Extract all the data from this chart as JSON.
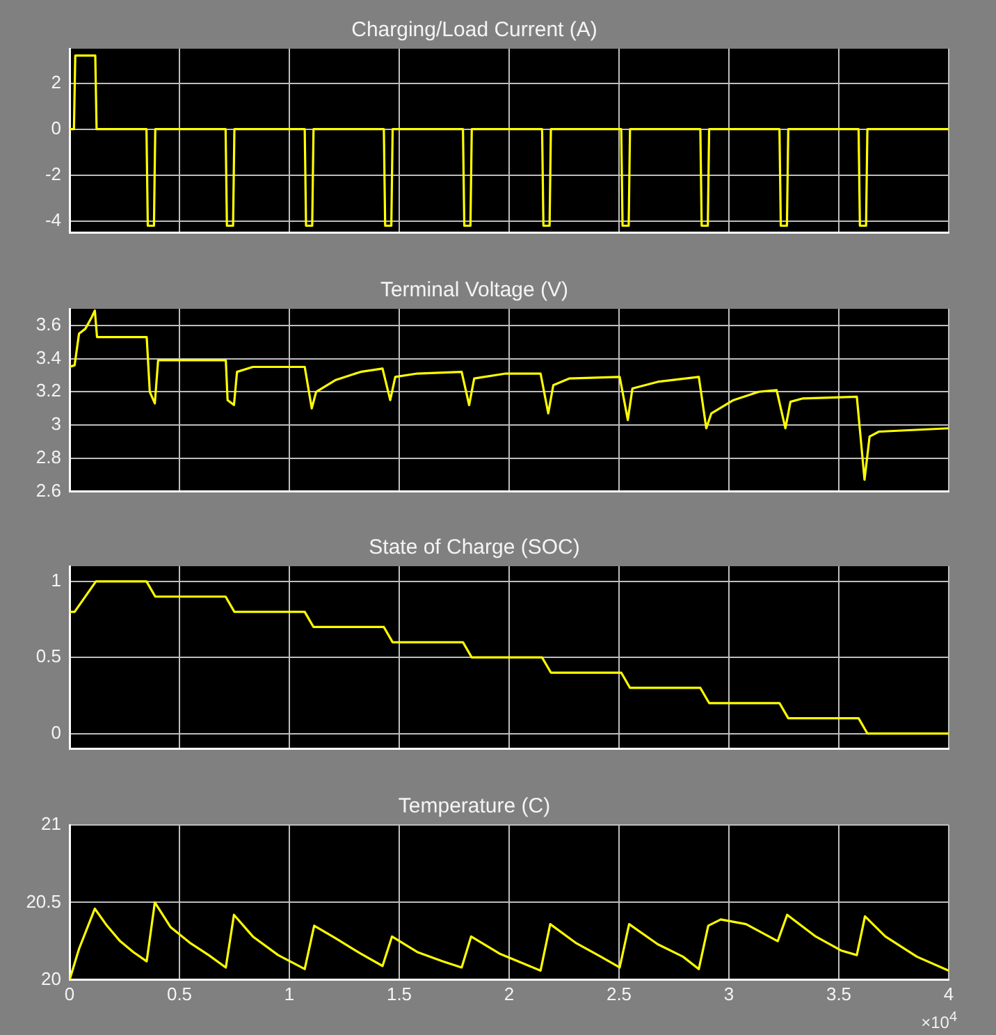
{
  "chart_data": [
    {
      "type": "line",
      "title": "Charging/Load Current (A)",
      "xlim": [
        0,
        4
      ],
      "xticks": [
        0,
        0.5,
        1,
        1.5,
        2,
        2.5,
        3,
        3.5,
        4
      ],
      "ylim": [
        -4.5,
        3.5
      ],
      "yticks": [
        -4,
        -2,
        0,
        2
      ],
      "grid": true,
      "tick_labels": "y",
      "series": [
        {
          "color": "#ffff00",
          "x": [
            0,
            0.02,
            0.026,
            0.117,
            0.123,
            0.35,
            0.356,
            0.384,
            0.39,
            0.71,
            0.716,
            0.744,
            0.75,
            1.07,
            1.076,
            1.104,
            1.11,
            1.43,
            1.436,
            1.464,
            1.47,
            1.79,
            1.796,
            1.824,
            1.83,
            2.15,
            2.156,
            2.184,
            2.19,
            2.51,
            2.516,
            2.544,
            2.55,
            2.87,
            2.876,
            2.904,
            2.91,
            3.23,
            3.236,
            3.264,
            3.27,
            3.59,
            3.596,
            3.624,
            3.63,
            4
          ],
          "values": [
            0,
            0,
            3.2,
            3.2,
            0,
            0,
            -4.2,
            -4.2,
            0,
            0,
            -4.2,
            -4.2,
            0,
            0,
            -4.2,
            -4.2,
            0,
            0,
            -4.2,
            -4.2,
            0,
            0,
            -4.2,
            -4.2,
            0,
            0,
            -4.2,
            -4.2,
            0,
            0,
            -4.2,
            -4.2,
            0,
            0,
            -4.2,
            -4.2,
            0,
            0,
            -4.2,
            -4.2,
            0,
            0,
            -4.2,
            -4.2,
            0,
            0
          ]
        }
      ]
    },
    {
      "type": "line",
      "title": "Terminal Voltage (V)",
      "xlim": [
        0,
        4
      ],
      "xticks": [
        0,
        0.5,
        1,
        1.5,
        2,
        2.5,
        3,
        3.5,
        4
      ],
      "ylim": [
        2.6,
        3.7
      ],
      "yticks": [
        2.6,
        2.8,
        3,
        3.2,
        3.4,
        3.6
      ],
      "grid": true,
      "tick_labels": "y",
      "series": [
        {
          "color": "#ffff00",
          "x": [
            0,
            0.023,
            0.043,
            0.072,
            0.101,
            0.115,
            0.125,
            0.351,
            0.365,
            0.388,
            0.403,
            0.711,
            0.719,
            0.748,
            0.762,
            0.834,
            1.07,
            1.102,
            1.122,
            1.209,
            1.324,
            1.424,
            1.459,
            1.482,
            1.582,
            1.784,
            1.818,
            1.841,
            1.985,
            2.143,
            2.178,
            2.201,
            2.273,
            2.503,
            2.54,
            2.561,
            2.676,
            2.863,
            2.897,
            2.92,
            3.021,
            3.136,
            3.217,
            3.257,
            3.28,
            3.337,
            3.582,
            3.617,
            3.64,
            3.683,
            4
          ],
          "values": [
            3.35,
            3.36,
            3.55,
            3.58,
            3.65,
            3.69,
            3.53,
            3.53,
            3.2,
            3.13,
            3.39,
            3.39,
            3.15,
            3.12,
            3.32,
            3.35,
            3.35,
            3.1,
            3.2,
            3.27,
            3.32,
            3.34,
            3.15,
            3.29,
            3.31,
            3.32,
            3.12,
            3.28,
            3.31,
            3.31,
            3.07,
            3.24,
            3.28,
            3.29,
            3.03,
            3.22,
            3.26,
            3.29,
            2.98,
            3.07,
            3.15,
            3.2,
            3.21,
            2.98,
            3.14,
            3.16,
            3.17,
            2.67,
            2.93,
            2.96,
            2.98
          ]
        }
      ]
    },
    {
      "type": "line",
      "title": "State of Charge (SOC)",
      "xlim": [
        0,
        4
      ],
      "xticks": [
        0,
        0.5,
        1,
        1.5,
        2,
        2.5,
        3,
        3.5,
        4
      ],
      "ylim": [
        -0.1,
        1.1
      ],
      "yticks": [
        0,
        0.5,
        1
      ],
      "grid": true,
      "tick_labels": "y",
      "series": [
        {
          "color": "#ffff00",
          "x": [
            0,
            0.023,
            0.12,
            0.35,
            0.39,
            0.71,
            0.75,
            1.07,
            1.11,
            1.43,
            1.47,
            1.79,
            1.83,
            2.15,
            2.19,
            2.51,
            2.55,
            2.87,
            2.91,
            3.23,
            3.27,
            3.59,
            3.63,
            4
          ],
          "values": [
            0.8,
            0.8,
            1,
            1,
            0.9,
            0.9,
            0.8,
            0.8,
            0.7,
            0.7,
            0.6,
            0.6,
            0.5,
            0.5,
            0.4,
            0.4,
            0.3,
            0.3,
            0.2,
            0.2,
            0.1,
            0.1,
            0,
            0
          ]
        }
      ]
    },
    {
      "type": "line",
      "title": "Temperature (C)",
      "xlim": [
        0,
        4
      ],
      "xticks": [
        0,
        0.5,
        1,
        1.5,
        2,
        2.5,
        3,
        3.5,
        4
      ],
      "ylim": [
        20,
        21
      ],
      "yticks": [
        20,
        20.5,
        21
      ],
      "grid": true,
      "annotations": [
        "×10$^{4}$"
      ],
      "series": [
        {
          "color": "#ffff00",
          "x": [
            0,
            0.043,
            0.115,
            0.17,
            0.23,
            0.29,
            0.351,
            0.388,
            0.46,
            0.547,
            0.633,
            0.711,
            0.748,
            0.834,
            0.949,
            1.07,
            1.113,
            1.209,
            1.324,
            1.424,
            1.467,
            1.582,
            1.697,
            1.784,
            1.827,
            1.956,
            2.143,
            2.187,
            2.302,
            2.417,
            2.503,
            2.546,
            2.676,
            2.791,
            2.863,
            2.906,
            2.963,
            3.078,
            3.222,
            3.265,
            3.395,
            3.51,
            3.582,
            3.619,
            3.712,
            3.855,
            4
          ],
          "values": [
            20,
            20.2,
            20.46,
            20.35,
            20.25,
            20.18,
            20.12,
            20.5,
            20.34,
            20.24,
            20.16,
            20.08,
            20.42,
            20.28,
            20.16,
            20.07,
            20.35,
            20.27,
            20.17,
            20.09,
            20.28,
            20.18,
            20.12,
            20.08,
            20.28,
            20.17,
            20.06,
            20.36,
            20.24,
            20.15,
            20.08,
            20.36,
            20.23,
            20.15,
            20.07,
            20.35,
            20.39,
            20.36,
            20.25,
            20.42,
            20.28,
            20.19,
            20.16,
            20.41,
            20.28,
            20.15,
            20.06
          ]
        }
      ]
    }
  ]
}
